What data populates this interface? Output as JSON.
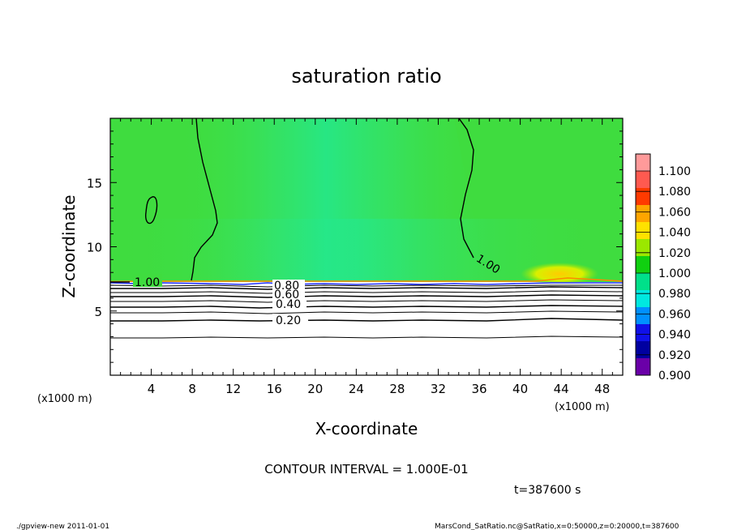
{
  "chart_data": {
    "type": "heatmap",
    "title": "saturation ratio",
    "xlabel": "X-coordinate",
    "ylabel": "Z-coordinate",
    "x_unit_left": "(x1000 m)",
    "x_unit_right": "(x1000 m)",
    "xlim": [
      0,
      50
    ],
    "ylim": [
      0,
      20
    ],
    "x_ticks": [
      "4",
      "8",
      "12",
      "16",
      "20",
      "24",
      "28",
      "32",
      "36",
      "40",
      "44",
      "48"
    ],
    "y_ticks": [
      "5",
      "10",
      "15"
    ],
    "colorbar": {
      "labels": [
        "1.100",
        "1.080",
        "1.060",
        "1.040",
        "1.020",
        "1.000",
        "0.980",
        "0.960",
        "0.940",
        "0.920",
        "0.900"
      ],
      "colors": [
        "#ff9a9a",
        "#ff5a50",
        "#ff3a00",
        "#ffa500",
        "#ffe100",
        "#9be800",
        "#10d010",
        "#00e08a",
        "#00e8e0",
        "#0090ff",
        "#1010e8",
        "#0000a0",
        "#6a00a8"
      ]
    },
    "contour_labels": [
      {
        "text": "1.00",
        "x": 4.5,
        "z": 7.3
      },
      {
        "text": "1.00",
        "x": 36.8,
        "z": 8.2
      },
      {
        "text": "0.80",
        "x": 17.0,
        "z": 6.8
      },
      {
        "text": "0.60",
        "x": 17.0,
        "z": 6.1
      },
      {
        "text": "0.40",
        "x": 17.0,
        "z": 5.5
      },
      {
        "text": "0.20",
        "x": 17.0,
        "z": 4.3
      }
    ],
    "contour_interval_text": "CONTOUR INTERVAL = 1.000E-01",
    "time_text": "t=387600 s"
  },
  "footer": {
    "left": "./gpview-new  2011-01-01",
    "right": "MarsCond_SatRatio.nc@SatRatio,x=0:50000,z=0:20000,t=387600"
  },
  "colors": {
    "field_green": "#3ee03a",
    "field_light": "#2ee06a",
    "interface_blue": "#2030ff"
  }
}
